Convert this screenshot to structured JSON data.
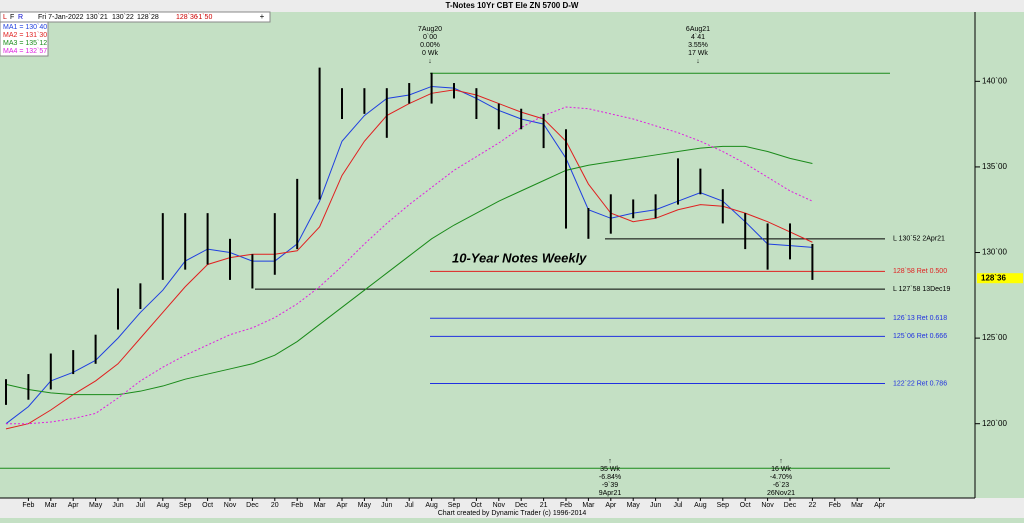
{
  "chart_data": {
    "type": "ohlc",
    "title": "T-Notes 10Yr CBT Ele ZN 5700 D-W",
    "toolbar": [
      "L",
      "F",
      "R",
      "Fri 7-Jan-2022",
      "130`21",
      "130`22",
      "128`28",
      "128`36",
      "-1`50"
    ],
    "chart_label": "10-Year Notes Weekly",
    "footer": "Chart created by Dynamic Trader  (c) 1996-2014",
    "categories": [
      null,
      "Feb",
      "Mar",
      "Apr",
      "May",
      "Jun",
      "Jul",
      "Aug",
      "Sep",
      "Oct",
      "Nov",
      "Dec",
      "20",
      "Feb",
      "Mar",
      "Apr",
      "May",
      "Jun",
      "Jul",
      "Aug",
      "Sep",
      "Oct",
      "Nov",
      "Dec",
      "21",
      "Feb",
      "Mar",
      "Apr",
      "May",
      "Jun",
      "Jul",
      "Aug",
      "Sep",
      "Oct",
      "Nov",
      "Dec",
      "22",
      "Feb",
      "Mar",
      "Apr"
    ],
    "high": [
      122.6,
      122.9,
      124.1,
      124.3,
      125.2,
      127.9,
      128.2,
      132.3,
      132.3,
      132.3,
      130.8,
      129.9,
      132.3,
      134.3,
      140.8,
      139.6,
      139.6,
      139.6,
      139.9,
      140.5,
      139.9,
      139.6,
      138.7,
      138.4,
      138.1,
      137.2,
      132.6,
      133.4,
      133.1,
      133.4,
      135.5,
      134.9,
      133.7,
      132.3,
      131.7,
      131.7,
      130.5,
      null,
      null,
      null
    ],
    "low": [
      121.1,
      121.4,
      122,
      122.9,
      123.5,
      125.5,
      126.7,
      128.4,
      129,
      129.3,
      128.4,
      127.9,
      128.7,
      130.2,
      133.1,
      137.8,
      138.1,
      136.7,
      138.7,
      138.7,
      139,
      137.8,
      137.2,
      137.2,
      136.1,
      131.4,
      130.8,
      131.1,
      132,
      132,
      132.8,
      133.4,
      131.7,
      130.2,
      129,
      129.6,
      128.4,
      null,
      null,
      null
    ],
    "series": [
      {
        "name": "MA1 = 130`40",
        "color": "#1f3fe0",
        "values": [
          120,
          121,
          122.5,
          123,
          123.7,
          125,
          126.5,
          127.8,
          129.5,
          130.2,
          130,
          129.5,
          129.5,
          130.5,
          133,
          136.5,
          138,
          139,
          139.2,
          139.7,
          139.6,
          139,
          138.3,
          137.8,
          137.5,
          135.5,
          132.5,
          132,
          132.3,
          132.5,
          133,
          133.5,
          133,
          131.8,
          130.5,
          130.4,
          130.3,
          null,
          null,
          null
        ]
      },
      {
        "name": "MA2 = 131`30",
        "color": "#e02020",
        "values": [
          119.7,
          120,
          120.8,
          121.7,
          122.5,
          123.5,
          125,
          126.5,
          128,
          129.3,
          129.7,
          129.9,
          129.9,
          130.1,
          131.5,
          134.5,
          136.5,
          138,
          138.7,
          139.3,
          139.5,
          139.2,
          138.7,
          138.2,
          137.8,
          136.5,
          134,
          132.3,
          131.8,
          132,
          132.5,
          132.8,
          132.7,
          132.3,
          131.8,
          131.2,
          130.6,
          null,
          null,
          null
        ]
      },
      {
        "name": "MA3 = 135`12",
        "color": "#1a8a1a",
        "values": [
          122.3,
          122,
          121.8,
          121.7,
          121.7,
          121.7,
          121.9,
          122.2,
          122.6,
          122.9,
          123.2,
          123.5,
          124,
          124.8,
          125.8,
          126.8,
          127.8,
          128.8,
          129.8,
          130.8,
          131.6,
          132.3,
          133,
          133.6,
          134.2,
          134.8,
          135.1,
          135.3,
          135.5,
          135.7,
          135.9,
          136.1,
          136.2,
          136.2,
          135.9,
          135.5,
          135.2,
          null,
          null,
          null
        ]
      },
      {
        "name": "MA4 = 132`57",
        "color": "#e020e0",
        "dashed": true,
        "values": [
          120,
          120,
          120.1,
          120.3,
          120.6,
          121.5,
          122.5,
          123.3,
          124,
          124.6,
          125.2,
          125.6,
          126.2,
          127,
          128,
          129.2,
          130.5,
          131.7,
          132.8,
          133.8,
          134.8,
          135.6,
          136.4,
          137.3,
          138,
          138.5,
          138.4,
          138.1,
          137.8,
          137.4,
          137,
          136.5,
          135.9,
          135.2,
          134.4,
          133.6,
          133,
          null,
          null,
          null
        ]
      }
    ],
    "ylim": [
      115.66,
      144.05
    ],
    "yticks": [
      {
        "value": 120,
        "label": "120`00"
      },
      {
        "value": 125,
        "label": "125`00"
      },
      {
        "value": 130,
        "label": "130`00"
      },
      {
        "value": 135,
        "label": "135`00"
      },
      {
        "value": 140,
        "label": "140`00"
      }
    ],
    "levels": [
      {
        "value": 130.8,
        "label": "L 130`52 2Apr21",
        "color": "#000000"
      },
      {
        "value": 128.9,
        "label": "128`58 Ret 0.500",
        "color": "#e02020"
      },
      {
        "value": 127.86,
        "label": "L 127`58 13Dec19",
        "color": "#000000"
      },
      {
        "value": 126.16,
        "label": "126`13 Ret 0.618",
        "color": "#2030e0"
      },
      {
        "value": 125.1,
        "label": "125`06 Ret 0.666",
        "color": "#2030e0"
      },
      {
        "value": 122.35,
        "label": "122`22 Ret 0.786",
        "color": "#2030e0"
      }
    ],
    "green_lines": [
      140.47,
      117.4
    ],
    "last": {
      "value": 128.5,
      "label": "128`36"
    },
    "annotations_top": [
      [
        "7Aug20",
        "0`00",
        "0.00%",
        "0 Wk"
      ],
      [
        "6Aug21",
        "4`41",
        "3.55%",
        "17 Wk"
      ]
    ],
    "annotations_bottom": [
      [
        "35 Wk",
        "-6.84%",
        "-9`39",
        "9Apr21"
      ],
      [
        "16 Wk",
        "-4.70%",
        "-6`23",
        "26Nov21"
      ]
    ]
  }
}
